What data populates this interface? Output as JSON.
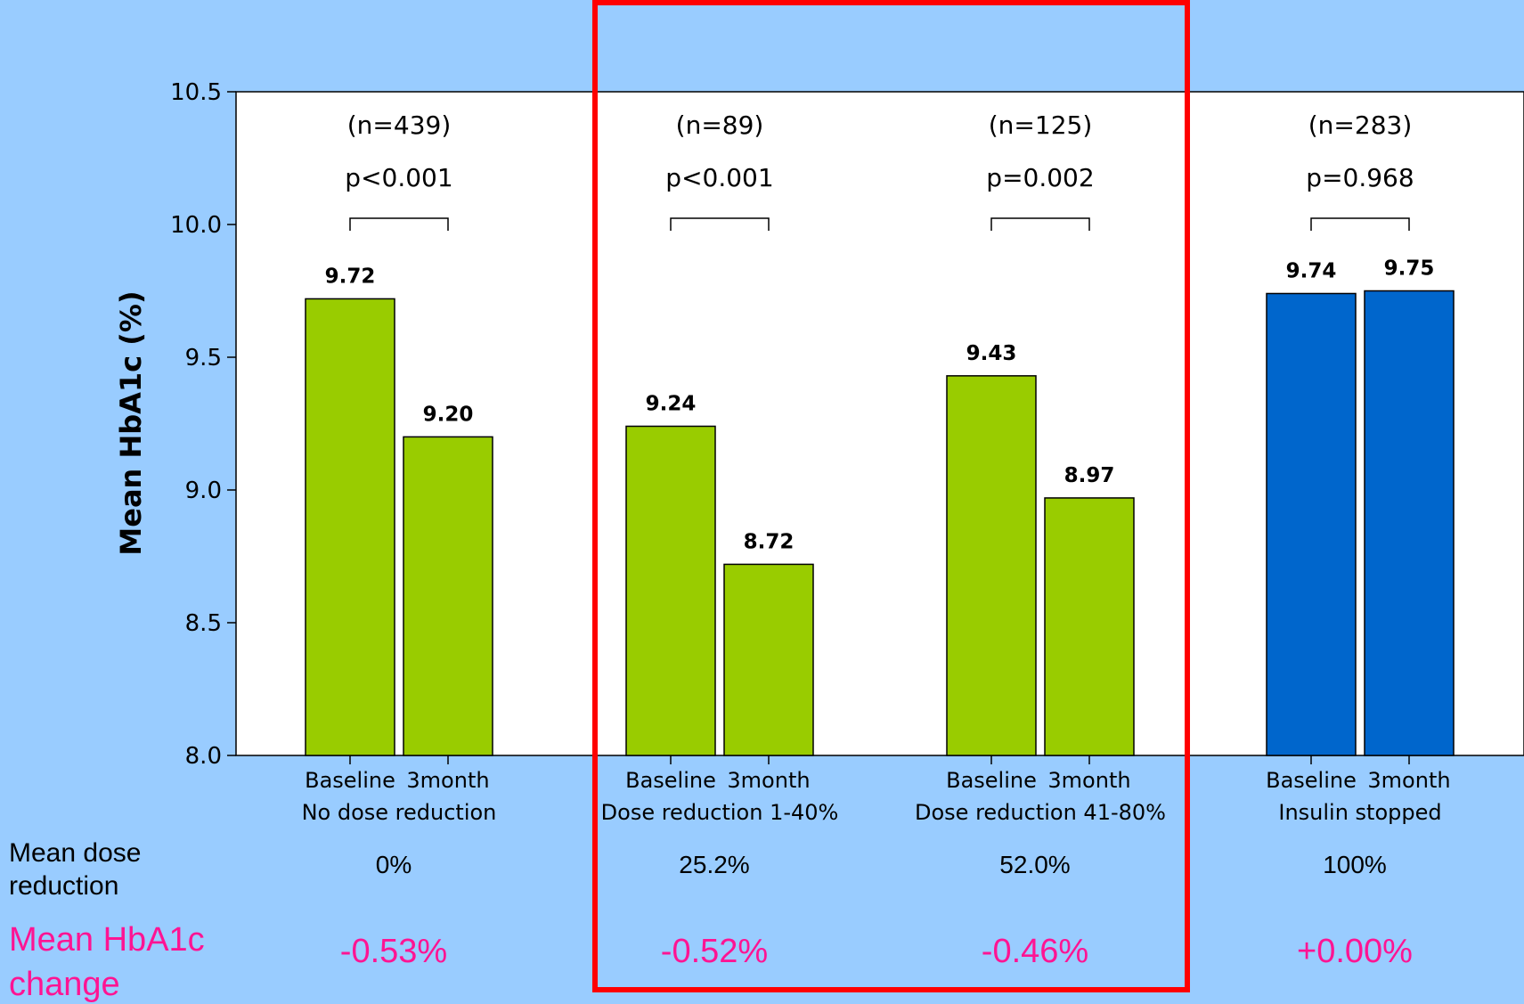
{
  "chart_data": {
    "type": "bar",
    "ylabel": "Mean HbA1c (%)",
    "ylim": [
      8.0,
      10.5
    ],
    "yticks": [
      "8.0",
      "8.5",
      "9.0",
      "9.5",
      "10.0",
      "10.5"
    ],
    "groups": [
      {
        "name": "No dose reduction",
        "n": "(n=439)",
        "p": "p<0.001",
        "bars": [
          {
            "label": "Baseline",
            "value": 9.72,
            "value_label": "9.72"
          },
          {
            "label": "3month",
            "value": 9.2,
            "value_label": "9.20"
          }
        ],
        "color": "#99cc00",
        "dose_reduction": "0%",
        "hba1c_change": "-0.53%"
      },
      {
        "name": "Dose reduction 1-40%",
        "n": "(n=89)",
        "p": "p<0.001",
        "bars": [
          {
            "label": "Baseline",
            "value": 9.24,
            "value_label": "9.24"
          },
          {
            "label": "3month",
            "value": 8.72,
            "value_label": "8.72"
          }
        ],
        "color": "#99cc00",
        "dose_reduction": "25.2%",
        "hba1c_change": "-0.52%"
      },
      {
        "name": "Dose reduction 41-80%",
        "n": "(n=125)",
        "p": "p=0.002",
        "bars": [
          {
            "label": "Baseline",
            "value": 9.43,
            "value_label": "9.43"
          },
          {
            "label": "3month",
            "value": 8.97,
            "value_label": "8.97"
          }
        ],
        "color": "#99cc00",
        "dose_reduction": "52.0%",
        "hba1c_change": "-0.46%"
      },
      {
        "name": "Insulin stopped",
        "n": "(n=283)",
        "p": "p=0.968",
        "bars": [
          {
            "label": "Baseline",
            "value": 9.74,
            "value_label": "9.74"
          },
          {
            "label": "3month",
            "value": 9.75,
            "value_label": "9.75"
          }
        ],
        "color": "#0066cc",
        "dose_reduction": "100%",
        "hba1c_change": "+0.00%"
      }
    ],
    "highlight_groups": [
      1,
      2
    ],
    "highlight_color": "#ff0000"
  },
  "rows": {
    "dose_label": "Mean dose\nreduction",
    "change_label": "Mean HbA1c\nchange"
  }
}
